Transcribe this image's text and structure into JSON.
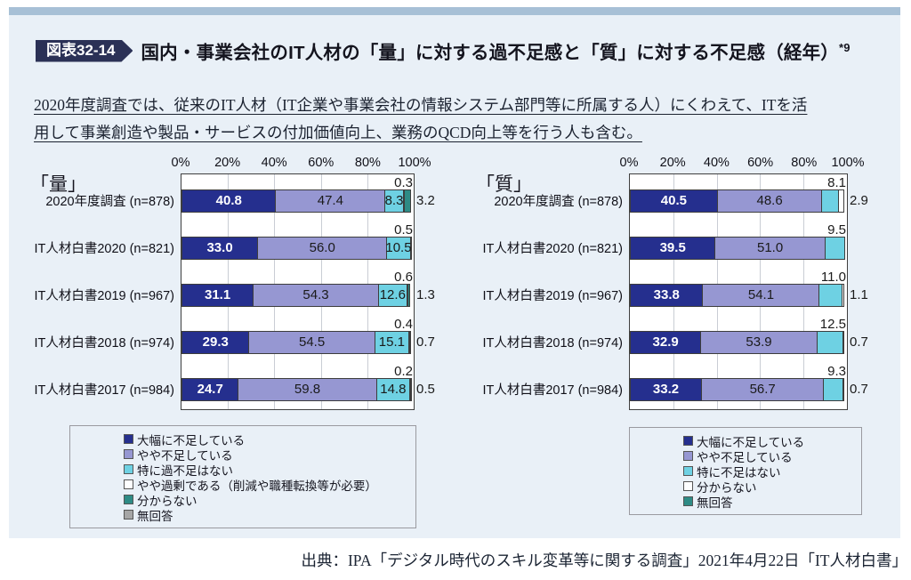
{
  "header": {
    "badge": "図表32-14",
    "title": "国内・事業会社のIT人材の「量」に対する過不足感と「質」に対する不足感（経年）",
    "title_sup": "*9"
  },
  "note_lines": {
    "line1": "2020年度調査では、従来のIT人材（IT企業や事業会社の情報システム部門等に所属する人）にくわえて、ITを活",
    "line2": "用して事業創造や製品・サービスの付加価値向上、業務のQCD向上等を行う人も含む。"
  },
  "source": "出典：IPA「デジタル時代のスキル変革等に関する調査」2021年4月22日「IT人材白書」",
  "colors": {
    "navy": "#252f8e",
    "purple": "#9697d2",
    "cyan": "#6ed1e3",
    "white": "#fdfeff",
    "teal": "#2e8b85",
    "gray": "#a6a6a6",
    "panel": "#e9f0f7",
    "topbar": "#a7c0d6",
    "badge": "#2b3156"
  },
  "chart_data": [
    {
      "type": "bar",
      "stacked": true,
      "orientation": "horizontal",
      "corner_label": "「量」",
      "xlim": [
        0,
        100
      ],
      "x_ticks": [
        "0%",
        "20%",
        "40%",
        "60%",
        "80%",
        "100%"
      ],
      "grid": true,
      "categories": [
        "2020年度調査 (n=878)",
        "IT人材白書2020 (n=821)",
        "IT人材白書2019 (n=967)",
        "IT人材白書2018 (n=974)",
        "IT人材白書2017 (n=984)"
      ],
      "legend": [
        {
          "key": "navy",
          "label": "大幅に不足している"
        },
        {
          "key": "purple",
          "label": "やや不足している"
        },
        {
          "key": "cyan",
          "label": "特に過不足はない"
        },
        {
          "key": "white",
          "label": "やや過剰である（削減や職種転換等が必要）"
        },
        {
          "key": "teal",
          "label": "分からない"
        },
        {
          "key": "gray",
          "label": "無回答"
        }
      ],
      "rows": [
        {
          "segs": [
            {
              "key": "navy",
              "v": 40.8,
              "t": "40.8",
              "pos": "in"
            },
            {
              "key": "purple",
              "v": 47.4,
              "t": "47.4",
              "pos": "in"
            },
            {
              "key": "cyan",
              "v": 8.3,
              "t": "8.3",
              "pos": "in"
            },
            {
              "key": "white",
              "v": 0.3,
              "t": "0.3",
              "pos": "above"
            },
            {
              "key": "teal",
              "v": 3.2,
              "t": "3.2",
              "pos": "right"
            }
          ]
        },
        {
          "segs": [
            {
              "key": "navy",
              "v": 33.0,
              "t": "33.0",
              "pos": "in"
            },
            {
              "key": "purple",
              "v": 56.0,
              "t": "56.0",
              "pos": "in"
            },
            {
              "key": "cyan",
              "v": 10.5,
              "t": "10.5",
              "pos": "in"
            },
            {
              "key": "white",
              "v": 0.5,
              "t": "0.5",
              "pos": "above"
            }
          ]
        },
        {
          "segs": [
            {
              "key": "navy",
              "v": 31.1,
              "t": "31.1",
              "pos": "in"
            },
            {
              "key": "purple",
              "v": 54.3,
              "t": "54.3",
              "pos": "in"
            },
            {
              "key": "cyan",
              "v": 12.6,
              "t": "12.6",
              "pos": "in"
            },
            {
              "key": "white",
              "v": 0.6,
              "t": "0.6",
              "pos": "above"
            },
            {
              "key": "teal",
              "v": 1.3,
              "t": "1.3",
              "pos": "right"
            }
          ]
        },
        {
          "segs": [
            {
              "key": "navy",
              "v": 29.3,
              "t": "29.3",
              "pos": "in"
            },
            {
              "key": "purple",
              "v": 54.5,
              "t": "54.5",
              "pos": "in"
            },
            {
              "key": "cyan",
              "v": 15.1,
              "t": "15.1",
              "pos": "in"
            },
            {
              "key": "white",
              "v": 0.4,
              "t": "0.4",
              "pos": "above"
            },
            {
              "key": "teal",
              "v": 0.7,
              "t": "0.7",
              "pos": "right"
            }
          ]
        },
        {
          "segs": [
            {
              "key": "navy",
              "v": 24.7,
              "t": "24.7",
              "pos": "in"
            },
            {
              "key": "purple",
              "v": 59.8,
              "t": "59.8",
              "pos": "in"
            },
            {
              "key": "cyan",
              "v": 14.8,
              "t": "14.8",
              "pos": "in"
            },
            {
              "key": "white",
              "v": 0.2,
              "t": "0.2",
              "pos": "above"
            },
            {
              "key": "teal",
              "v": 0.5,
              "t": "0.5",
              "pos": "right"
            }
          ]
        }
      ]
    },
    {
      "type": "bar",
      "stacked": true,
      "orientation": "horizontal",
      "corner_label": "「質」",
      "xlim": [
        0,
        100
      ],
      "x_ticks": [
        "0%",
        "20%",
        "40%",
        "60%",
        "80%",
        "100%"
      ],
      "grid": true,
      "categories": [
        "2020年度調査 (n=878)",
        "IT人材白書2020 (n=821)",
        "IT人材白書2019 (n=967)",
        "IT人材白書2018 (n=974)",
        "IT人材白書2017 (n=984)"
      ],
      "legend": [
        {
          "key": "navy",
          "label": "大幅に不足している"
        },
        {
          "key": "purple",
          "label": "やや不足している"
        },
        {
          "key": "cyan",
          "label": "特に不足はない"
        },
        {
          "key": "white",
          "label": "分からない"
        },
        {
          "key": "teal",
          "label": "無回答"
        }
      ],
      "rows": [
        {
          "segs": [
            {
              "key": "navy",
              "v": 40.5,
              "t": "40.5",
              "pos": "in"
            },
            {
              "key": "purple",
              "v": 48.6,
              "t": "48.6",
              "pos": "in"
            },
            {
              "key": "cyan",
              "v": 8.1,
              "t": "8.1",
              "pos": "above"
            },
            {
              "key": "white",
              "v": 2.9,
              "t": "2.9",
              "pos": "right"
            }
          ]
        },
        {
          "segs": [
            {
              "key": "navy",
              "v": 39.5,
              "t": "39.5",
              "pos": "in"
            },
            {
              "key": "purple",
              "v": 51.0,
              "t": "51.0",
              "pos": "in"
            },
            {
              "key": "cyan",
              "v": 9.5,
              "t": "9.5",
              "pos": "above"
            }
          ]
        },
        {
          "segs": [
            {
              "key": "navy",
              "v": 33.8,
              "t": "33.8",
              "pos": "in"
            },
            {
              "key": "purple",
              "v": 54.1,
              "t": "54.1",
              "pos": "in"
            },
            {
              "key": "cyan",
              "v": 11.0,
              "t": "11.0",
              "pos": "above"
            },
            {
              "key": "white",
              "v": 1.1,
              "t": "1.1",
              "pos": "right"
            }
          ]
        },
        {
          "segs": [
            {
              "key": "navy",
              "v": 32.9,
              "t": "32.9",
              "pos": "in"
            },
            {
              "key": "purple",
              "v": 53.9,
              "t": "53.9",
              "pos": "in"
            },
            {
              "key": "cyan",
              "v": 12.5,
              "t": "12.5",
              "pos": "above"
            },
            {
              "key": "white",
              "v": 0.7,
              "t": "0.7",
              "pos": "right"
            }
          ]
        },
        {
          "segs": [
            {
              "key": "navy",
              "v": 33.2,
              "t": "33.2",
              "pos": "in"
            },
            {
              "key": "purple",
              "v": 56.7,
              "t": "56.7",
              "pos": "in"
            },
            {
              "key": "cyan",
              "v": 9.3,
              "t": "9.3",
              "pos": "above"
            },
            {
              "key": "white",
              "v": 0.7,
              "t": "0.7",
              "pos": "right"
            }
          ]
        }
      ]
    }
  ]
}
